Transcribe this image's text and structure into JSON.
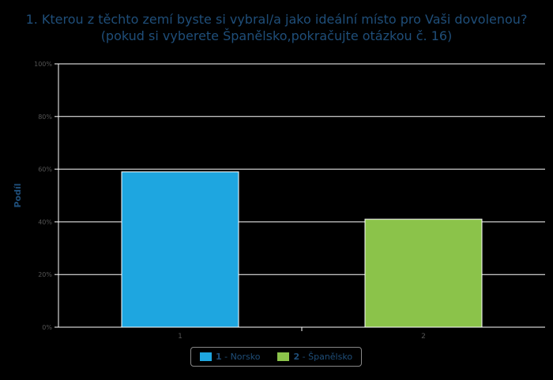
{
  "chart_data": {
    "type": "bar",
    "title": "1. Kterou z těchto zemí byste si vybral/a jako ideální místo pro Vaši dovolenou?",
    "subtitle": "(pokud si vyberete Španělsko,pokračujte otázkou č. 16)",
    "ylabel": "Podíl",
    "categories": [
      "1",
      "2"
    ],
    "values": [
      59,
      41
    ],
    "ylim": [
      0,
      100
    ],
    "yticks": [
      "0%",
      "20%",
      "40%",
      "60%",
      "80%",
      "100%"
    ],
    "grid": true,
    "legend_position": "bottom",
    "colors": [
      "#1ea6e0",
      "#8bc34a"
    ],
    "legend": [
      {
        "num": "1",
        "sep": " - ",
        "label": "Norsko"
      },
      {
        "num": "2",
        "sep": " - ",
        "label": "Španělsko"
      }
    ]
  }
}
